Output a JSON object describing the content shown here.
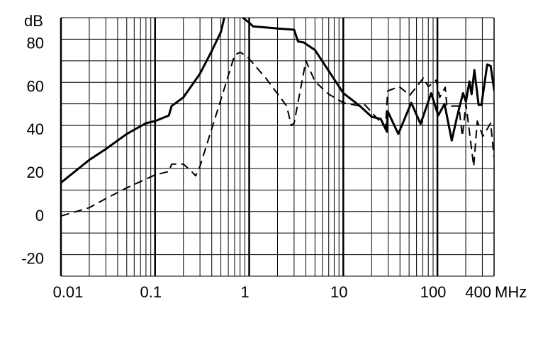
{
  "chart_data": {
    "type": "line",
    "xscale": "log",
    "xlim": [
      0.01,
      400
    ],
    "ylim": [
      -30,
      90
    ],
    "grid": true,
    "ylabel": "dB",
    "xunit": "MHz",
    "x_ticks": [
      {
        "value": 0.01,
        "label": "0.01"
      },
      {
        "value": 0.1,
        "label": "0.1"
      },
      {
        "value": 1,
        "label": "1"
      },
      {
        "value": 10,
        "label": "10"
      },
      {
        "value": 100,
        "label": "100"
      },
      {
        "value": 400,
        "label": "400"
      }
    ],
    "y_ticks": [
      {
        "value": 80,
        "label": "80"
      },
      {
        "value": 60,
        "label": "60"
      },
      {
        "value": 40,
        "label": "40"
      },
      {
        "value": 20,
        "label": "20"
      },
      {
        "value": 0,
        "label": "0"
      },
      {
        "value": -20,
        "label": "-20"
      }
    ],
    "series": [
      {
        "style": "solid",
        "color": "#000000",
        "points": [
          [
            0.01,
            13.4
          ],
          [
            0.02,
            24
          ],
          [
            0.03,
            29
          ],
          [
            0.05,
            36
          ],
          [
            0.08,
            41
          ],
          [
            0.1,
            42
          ],
          [
            0.14,
            44.6
          ],
          [
            0.15,
            49
          ],
          [
            0.2,
            53
          ],
          [
            0.3,
            64
          ],
          [
            0.4,
            74.5
          ],
          [
            0.5,
            83.4
          ],
          [
            0.55,
            91
          ],
          [
            0.8,
            91
          ],
          [
            1.0,
            87.7
          ],
          [
            1.1,
            86
          ],
          [
            2,
            85
          ],
          [
            3,
            84.4
          ],
          [
            3.3,
            79
          ],
          [
            3.8,
            78.5
          ],
          [
            5,
            75
          ],
          [
            10,
            55
          ],
          [
            15,
            49
          ],
          [
            20,
            44
          ],
          [
            25,
            43
          ],
          [
            29.1,
            37
          ],
          [
            29.6,
            46.6
          ],
          [
            38.4,
            36
          ],
          [
            52.8,
            50.5
          ],
          [
            66.2,
            40.7
          ],
          [
            85.9,
            55
          ],
          [
            102,
            44.6
          ],
          [
            119,
            50
          ],
          [
            142,
            33
          ],
          [
            163,
            44.6
          ],
          [
            187,
            55
          ],
          [
            201,
            51
          ],
          [
            219,
            60.4
          ],
          [
            231,
            54.5
          ],
          [
            247,
            65.7
          ],
          [
            274,
            49.5
          ],
          [
            294,
            49.5
          ],
          [
            338,
            68.3
          ],
          [
            368,
            67.6
          ],
          [
            402,
            56
          ]
        ]
      },
      {
        "style": "dashed",
        "color": "#000000",
        "points": [
          [
            0.01,
            -2.1
          ],
          [
            0.02,
            1.8
          ],
          [
            0.03,
            6
          ],
          [
            0.05,
            11
          ],
          [
            0.1,
            17
          ],
          [
            0.14,
            18.6
          ],
          [
            0.15,
            22
          ],
          [
            0.2,
            22
          ],
          [
            0.24,
            19
          ],
          [
            0.27,
            16.6
          ],
          [
            0.3,
            21
          ],
          [
            0.5,
            52
          ],
          [
            0.7,
            72.6
          ],
          [
            0.8,
            74
          ],
          [
            0.95,
            72
          ],
          [
            1.5,
            62
          ],
          [
            2.5,
            49
          ],
          [
            2.8,
            40
          ],
          [
            3,
            41
          ],
          [
            4,
            70
          ],
          [
            5,
            60.4
          ],
          [
            7,
            54.5
          ],
          [
            10,
            50.5
          ],
          [
            15,
            49
          ],
          [
            17,
            49.5
          ],
          [
            28,
            39
          ],
          [
            29.6,
            56
          ],
          [
            39.3,
            58
          ],
          [
            51,
            54
          ],
          [
            71,
            62
          ],
          [
            80,
            58
          ],
          [
            97,
            61
          ],
          [
            106,
            53
          ],
          [
            121,
            57.7
          ],
          [
            126,
            49
          ],
          [
            169,
            49
          ],
          [
            184,
            35
          ],
          [
            201,
            50
          ],
          [
            243,
            21
          ],
          [
            265,
            42
          ],
          [
            304,
            35
          ],
          [
            368,
            41
          ],
          [
            400,
            25
          ]
        ]
      }
    ]
  }
}
